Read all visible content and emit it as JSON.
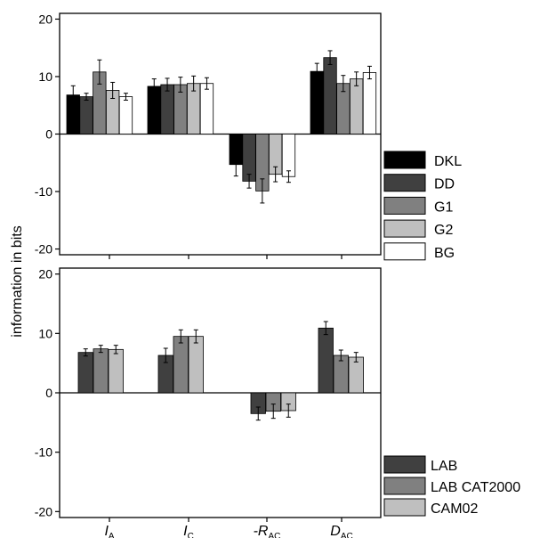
{
  "ylabel": "information in bits",
  "colors": {
    "DKL": "#000000",
    "DD": "#404040",
    "G1": "#808080",
    "G2": "#bfbfbf",
    "BG": "#ffffff",
    "LAB": "#404040",
    "LAB CAT2000": "#808080",
    "CAM02": "#bfbfbf"
  },
  "chart_data": [
    {
      "type": "bar",
      "panel": "top",
      "categories": [
        {
          "main": "I",
          "sub": "A"
        },
        {
          "main": "I",
          "sub": "C"
        },
        {
          "main": "-R",
          "sub": "AC"
        },
        {
          "main": "D",
          "sub": "AC"
        }
      ],
      "ylim": [
        -21,
        21
      ],
      "yticks": [
        -20,
        -10,
        0,
        10,
        20
      ],
      "ytick_labels": [
        "-20",
        "-10",
        "0",
        "10",
        "20"
      ],
      "legend_position": "right-outside",
      "series": [
        {
          "name": "DKL",
          "values": [
            6.8,
            8.3,
            -5.3,
            10.9
          ],
          "errors": [
            1.6,
            1.3,
            2.0,
            1.4
          ]
        },
        {
          "name": "DD",
          "values": [
            6.5,
            8.6,
            -8.2,
            13.3
          ],
          "errors": [
            0.6,
            1.1,
            1.2,
            1.2
          ]
        },
        {
          "name": "G1",
          "values": [
            10.8,
            8.6,
            -9.9,
            8.8
          ],
          "errors": [
            2.1,
            1.3,
            2.1,
            1.4
          ]
        },
        {
          "name": "G2",
          "values": [
            7.6,
            8.8,
            -7.0,
            9.6
          ],
          "errors": [
            1.4,
            1.3,
            1.3,
            1.2
          ]
        },
        {
          "name": "BG",
          "values": [
            6.5,
            8.8,
            -7.4,
            10.7
          ],
          "errors": [
            0.6,
            1.0,
            1.0,
            1.1
          ]
        }
      ]
    },
    {
      "type": "bar",
      "panel": "bottom",
      "categories": [
        {
          "main": "I",
          "sub": "A"
        },
        {
          "main": "I",
          "sub": "C"
        },
        {
          "main": "-R",
          "sub": "AC"
        },
        {
          "main": "D",
          "sub": "AC"
        }
      ],
      "ylim": [
        -21,
        21
      ],
      "yticks": [
        -20,
        -10,
        0,
        10,
        20
      ],
      "ytick_labels": [
        "-20",
        "-10",
        "0",
        "10",
        "20"
      ],
      "legend_position": "right-outside",
      "series": [
        {
          "name": "LAB",
          "values": [
            6.8,
            6.3,
            -3.5,
            10.9
          ],
          "errors": [
            0.6,
            1.2,
            1.1,
            1.1
          ]
        },
        {
          "name": "LAB CAT2000",
          "values": [
            7.4,
            9.5,
            -3.1,
            6.3
          ],
          "errors": [
            0.6,
            1.1,
            1.2,
            0.9
          ]
        },
        {
          "name": "CAM02",
          "values": [
            7.3,
            9.5,
            -3.0,
            6.0
          ],
          "errors": [
            0.7,
            1.1,
            1.1,
            0.8
          ]
        }
      ]
    }
  ]
}
